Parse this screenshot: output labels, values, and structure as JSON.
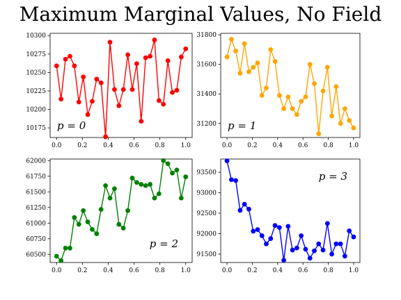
{
  "figure": {
    "title": "Maximum Marginal Values, No Field"
  },
  "chart_data": [
    {
      "type": "line",
      "annotation": "p = 0",
      "annotation_pos": "bottom-left",
      "color": "#ff0000",
      "xlim": [
        -0.05,
        1.05
      ],
      "ylim": [
        10162,
        10303
      ],
      "xticks": [
        0.0,
        0.2,
        0.4,
        0.6,
        0.8,
        1.0
      ],
      "xtick_labels": [
        "0.0",
        "0.2",
        "0.4",
        "0.6",
        "0.8",
        "1.0"
      ],
      "yticks": [
        10175,
        10200,
        10225,
        10250,
        10275,
        10300
      ],
      "ytick_labels": [
        "10175",
        "10200",
        "10225",
        "10250",
        "10275",
        "10300"
      ],
      "x": [
        0.0,
        0.0345,
        0.069,
        0.1034,
        0.1379,
        0.1724,
        0.2069,
        0.2414,
        0.2759,
        0.3103,
        0.3448,
        0.3793,
        0.4138,
        0.4483,
        0.4828,
        0.5172,
        0.5517,
        0.5862,
        0.6207,
        0.6552,
        0.6897,
        0.7241,
        0.7586,
        0.7931,
        0.8276,
        0.8621,
        0.8966,
        0.931,
        0.9655,
        1.0
      ],
      "y": [
        10259,
        10214,
        10268,
        10272,
        10259,
        10210,
        10244,
        10193,
        10211,
        10241,
        10236,
        10163,
        10291,
        10227,
        10205,
        10227,
        10274,
        10227,
        10262,
        10184,
        10270,
        10272,
        10294,
        10212,
        10207,
        10266,
        10223,
        10226,
        10271,
        10282
      ]
    },
    {
      "type": "line",
      "annotation": "p = 1",
      "annotation_pos": "bottom-left",
      "color": "#ffa500",
      "xlim": [
        -0.05,
        1.05
      ],
      "ylim": [
        31105,
        31810
      ],
      "xticks": [
        0.0,
        0.2,
        0.4,
        0.6,
        0.8,
        1.0
      ],
      "xtick_labels": [
        "0.0",
        "0.2",
        "0.4",
        "0.6",
        "0.8",
        "1.0"
      ],
      "yticks": [
        31200,
        31400,
        31600,
        31800
      ],
      "ytick_labels": [
        "31200",
        "31400",
        "31600",
        "31800"
      ],
      "x": [
        0.0,
        0.0345,
        0.069,
        0.1034,
        0.1379,
        0.1724,
        0.2069,
        0.2414,
        0.2759,
        0.3103,
        0.3448,
        0.3793,
        0.4138,
        0.4483,
        0.4828,
        0.5172,
        0.5517,
        0.5862,
        0.6207,
        0.6552,
        0.6897,
        0.7241,
        0.7586,
        0.7931,
        0.8276,
        0.8621,
        0.8966,
        0.931,
        0.9655,
        1.0
      ],
      "y": [
        31650,
        31770,
        31690,
        31540,
        31740,
        31550,
        31580,
        31610,
        31390,
        31440,
        31700,
        31620,
        31390,
        31300,
        31380,
        31300,
        31260,
        31350,
        31380,
        31600,
        31470,
        31130,
        31420,
        31580,
        31250,
        31450,
        31200,
        31300,
        31220,
        31170
      ]
    },
    {
      "type": "line",
      "annotation": "p = 2",
      "annotation_pos": "bottom-right",
      "color": "#008000",
      "xlim": [
        -0.05,
        1.05
      ],
      "ylim": [
        60370,
        62025
      ],
      "xticks": [
        0.0,
        0.2,
        0.4,
        0.6,
        0.8,
        1.0
      ],
      "xtick_labels": [
        "0.0",
        "0.2",
        "0.4",
        "0.6",
        "0.8",
        "1.0"
      ],
      "yticks": [
        60500,
        60750,
        61000,
        61250,
        61500,
        61750,
        62000
      ],
      "ytick_labels": [
        "60500",
        "60750",
        "61000",
        "61250",
        "61500",
        "61750",
        "62000"
      ],
      "x": [
        0.0,
        0.0345,
        0.069,
        0.1034,
        0.1379,
        0.1724,
        0.2069,
        0.2414,
        0.2759,
        0.3103,
        0.3448,
        0.3793,
        0.4138,
        0.4483,
        0.4828,
        0.5172,
        0.5517,
        0.5862,
        0.6207,
        0.6552,
        0.6897,
        0.7241,
        0.7586,
        0.7931,
        0.8276,
        0.8621,
        0.8966,
        0.931,
        0.9655,
        1.0
      ],
      "y": [
        60470,
        60400,
        60600,
        60600,
        61090,
        60980,
        61200,
        61020,
        60900,
        60830,
        61220,
        61600,
        61400,
        61550,
        60980,
        60920,
        61200,
        61720,
        61650,
        61620,
        61600,
        61620,
        61400,
        61470,
        62000,
        61950,
        61800,
        61850,
        61400,
        61740
      ]
    },
    {
      "type": "line",
      "annotation": "p = 3",
      "annotation_pos": "top-right",
      "color": "#0000ff",
      "xlim": [
        -0.05,
        1.05
      ],
      "ylim": [
        91295,
        93825
      ],
      "xticks": [
        0.0,
        0.2,
        0.4,
        0.6,
        0.8,
        1.0
      ],
      "xtick_labels": [
        "0.0",
        "0.2",
        "0.4",
        "0.6",
        "0.8",
        "1.0"
      ],
      "yticks": [
        91500,
        92000,
        92500,
        93000,
        93500
      ],
      "ytick_labels": [
        "91500",
        "92000",
        "92500",
        "93000",
        "93500"
      ],
      "x": [
        0.0,
        0.0345,
        0.069,
        0.1034,
        0.1379,
        0.1724,
        0.2069,
        0.2414,
        0.2759,
        0.3103,
        0.3448,
        0.3793,
        0.4138,
        0.4483,
        0.4828,
        0.5172,
        0.5517,
        0.5862,
        0.6207,
        0.6552,
        0.6897,
        0.7241,
        0.7586,
        0.7931,
        0.8276,
        0.8621,
        0.8966,
        0.931,
        0.9655,
        1.0
      ],
      "y": [
        93780,
        93320,
        93300,
        92570,
        92720,
        92600,
        92060,
        92100,
        91950,
        91750,
        91880,
        92200,
        92150,
        91350,
        92180,
        91600,
        91650,
        91950,
        91620,
        91400,
        91580,
        91750,
        91600,
        92250,
        91500,
        91750,
        91750,
        91450,
        92070,
        91920
      ]
    }
  ]
}
